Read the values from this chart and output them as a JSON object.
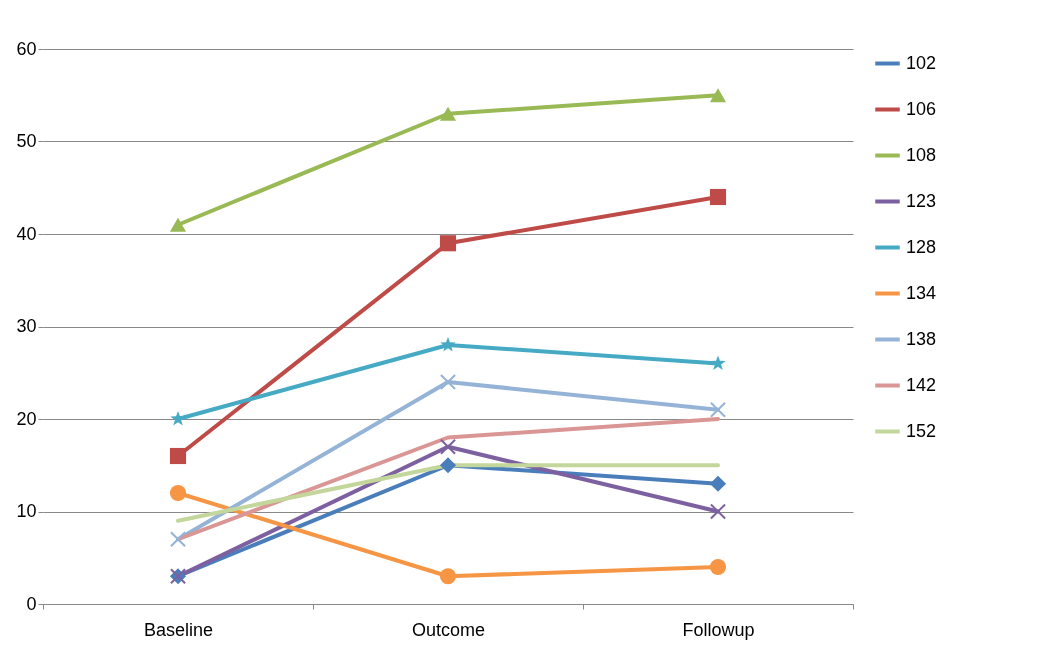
{
  "chart_data": {
    "type": "line",
    "categories": [
      "Baseline",
      "Outcome",
      "Followup"
    ],
    "ylim": [
      0,
      60
    ],
    "yticks": [
      0,
      10,
      20,
      30,
      40,
      50,
      60
    ],
    "grid": "y",
    "legend": "right",
    "series": [
      {
        "name": "102",
        "color": "#4a7ebb",
        "marker": "diamond",
        "values": [
          3,
          15,
          13
        ]
      },
      {
        "name": "106",
        "color": "#be4b48",
        "marker": "square",
        "values": [
          16,
          39,
          44
        ]
      },
      {
        "name": "108",
        "color": "#98b954",
        "marker": "triangle",
        "values": [
          41,
          53,
          55
        ]
      },
      {
        "name": "123",
        "color": "#7d60a0",
        "marker": "cross",
        "values": [
          3,
          17,
          10
        ]
      },
      {
        "name": "128",
        "color": "#46aac5",
        "marker": "star",
        "values": [
          20,
          28,
          26
        ]
      },
      {
        "name": "134",
        "color": "#f69544",
        "marker": "circle",
        "values": [
          12,
          3,
          4
        ]
      },
      {
        "name": "138",
        "color": "#95b3d7",
        "marker": "cross",
        "values": [
          7,
          24,
          21
        ]
      },
      {
        "name": "142",
        "color": "#d99694",
        "marker": "none",
        "values": [
          7,
          18,
          20
        ]
      },
      {
        "name": "152",
        "color": "#c3d69b",
        "marker": "none",
        "values": [
          9,
          15,
          15
        ]
      }
    ]
  }
}
